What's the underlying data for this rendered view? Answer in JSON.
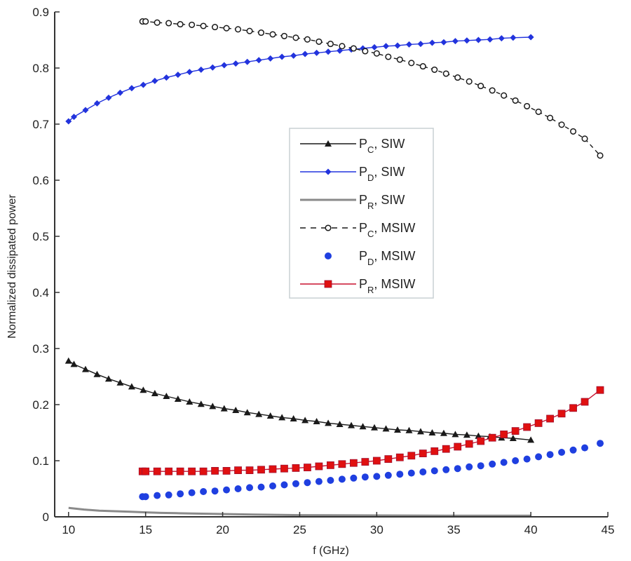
{
  "chart_data": {
    "type": "line",
    "title": "",
    "xlabel": "f (GHz)",
    "ylabel": "Normalized dissipated power",
    "xlim": [
      9.1,
      45
    ],
    "ylim": [
      0,
      0.9
    ],
    "grid": false,
    "legend_position": "center",
    "xticks": [
      10,
      15,
      20,
      25,
      30,
      35,
      40,
      45
    ],
    "xtick_labels": [
      "10",
      "15",
      "20",
      "25",
      "30",
      "35",
      "40",
      "45"
    ],
    "yticks": [
      0,
      0.1,
      0.2,
      0.3,
      0.4,
      0.5,
      0.6,
      0.7,
      0.8,
      0.9
    ],
    "ytick_labels": [
      "0",
      "0.1",
      "0.2",
      "0.3",
      "0.4",
      "0.5",
      "0.6",
      "0.7",
      "0.8",
      "0.9"
    ],
    "series": [
      {
        "name": "PC, SIW",
        "legend_main": "P",
        "legend_sub": "C",
        "legend_rest": ", SIW",
        "color": "#1a1a1a",
        "line": "solid",
        "marker": "triangle",
        "x": [
          10,
          10.35,
          11.1,
          11.85,
          12.6,
          13.35,
          14.1,
          14.85,
          15.6,
          16.35,
          17.1,
          17.85,
          18.6,
          19.35,
          20.1,
          20.85,
          21.6,
          22.35,
          23.1,
          23.85,
          24.6,
          25.35,
          26.1,
          26.85,
          27.6,
          28.35,
          29.1,
          29.85,
          30.6,
          31.35,
          32.1,
          32.85,
          33.6,
          34.35,
          35.1,
          35.85,
          36.6,
          37.35,
          38.1,
          38.85,
          40
        ],
        "y": [
          0.278,
          0.272,
          0.263,
          0.254,
          0.246,
          0.239,
          0.232,
          0.226,
          0.22,
          0.215,
          0.21,
          0.205,
          0.201,
          0.197,
          0.193,
          0.19,
          0.186,
          0.183,
          0.18,
          0.177,
          0.175,
          0.172,
          0.17,
          0.167,
          0.165,
          0.163,
          0.161,
          0.159,
          0.157,
          0.155,
          0.154,
          0.152,
          0.15,
          0.149,
          0.147,
          0.146,
          0.144,
          0.143,
          0.141,
          0.14,
          0.137
        ]
      },
      {
        "name": "PD, SIW",
        "legend_main": "P",
        "legend_sub": "D",
        "legend_rest": ", SIW",
        "color": "#2233dd",
        "line": "solid",
        "marker": "diamond",
        "x": [
          10,
          10.35,
          11.1,
          11.85,
          12.6,
          13.35,
          14.1,
          14.85,
          15.6,
          16.35,
          17.1,
          17.85,
          18.6,
          19.35,
          20.1,
          20.85,
          21.6,
          22.35,
          23.1,
          23.85,
          24.6,
          25.35,
          26.1,
          26.85,
          27.6,
          28.35,
          29.1,
          29.85,
          30.6,
          31.35,
          32.1,
          32.85,
          33.6,
          34.35,
          35.1,
          35.85,
          36.6,
          37.35,
          38.1,
          38.85,
          40
        ],
        "y": [
          0.705,
          0.713,
          0.725,
          0.737,
          0.747,
          0.756,
          0.764,
          0.77,
          0.777,
          0.783,
          0.788,
          0.793,
          0.797,
          0.801,
          0.805,
          0.808,
          0.811,
          0.814,
          0.817,
          0.82,
          0.822,
          0.825,
          0.827,
          0.829,
          0.831,
          0.833,
          0.835,
          0.837,
          0.839,
          0.84,
          0.842,
          0.843,
          0.845,
          0.846,
          0.848,
          0.849,
          0.85,
          0.851,
          0.853,
          0.854,
          0.855
        ]
      },
      {
        "name": "PR, SIW",
        "legend_main": "P",
        "legend_sub": "R",
        "legend_rest": ", SIW",
        "color": "#8a8a8a",
        "line": "solid",
        "marker": "none",
        "x": [
          10,
          11,
          12,
          13,
          14,
          15,
          16,
          17,
          18,
          20,
          22,
          25,
          30,
          35,
          40
        ],
        "y": [
          0.016,
          0.013,
          0.011,
          0.01,
          0.009,
          0.008,
          0.007,
          0.0065,
          0.006,
          0.005,
          0.004,
          0.003,
          0.0025,
          0.002,
          0.002
        ]
      },
      {
        "name": "PC, MSIW",
        "legend_main": "P",
        "legend_sub": "C",
        "legend_rest": ", MSIW",
        "color": "#1a1a1a",
        "line": "dashed",
        "marker": "circle-open",
        "x": [
          14.8,
          15.0,
          15.75,
          16.5,
          17.25,
          18.0,
          18.75,
          19.5,
          20.25,
          21.0,
          21.75,
          22.5,
          23.25,
          24.0,
          24.75,
          25.5,
          26.25,
          27.0,
          27.75,
          28.5,
          29.25,
          30.0,
          30.75,
          31.5,
          32.25,
          33.0,
          33.75,
          34.5,
          35.25,
          36.0,
          36.75,
          37.5,
          38.25,
          39.0,
          39.75,
          40.5,
          41.25,
          42.0,
          42.75,
          43.5,
          44.5
        ],
        "y": [
          0.883,
          0.883,
          0.881,
          0.88,
          0.878,
          0.877,
          0.875,
          0.873,
          0.871,
          0.869,
          0.866,
          0.863,
          0.86,
          0.857,
          0.854,
          0.851,
          0.847,
          0.843,
          0.839,
          0.835,
          0.83,
          0.826,
          0.82,
          0.815,
          0.809,
          0.803,
          0.797,
          0.79,
          0.783,
          0.776,
          0.768,
          0.76,
          0.751,
          0.742,
          0.732,
          0.722,
          0.711,
          0.699,
          0.687,
          0.674,
          0.644
        ]
      },
      {
        "name": "PD, MSIW",
        "legend_main": "P",
        "legend_sub": "D",
        "legend_rest": ", MSIW",
        "color": "#1f3fe0",
        "line": "none",
        "marker": "dot",
        "x": [
          14.8,
          15.0,
          15.75,
          16.5,
          17.25,
          18.0,
          18.75,
          19.5,
          20.25,
          21.0,
          21.75,
          22.5,
          23.25,
          24.0,
          24.75,
          25.5,
          26.25,
          27.0,
          27.75,
          28.5,
          29.25,
          30.0,
          30.75,
          31.5,
          32.25,
          33.0,
          33.75,
          34.5,
          35.25,
          36.0,
          36.75,
          37.5,
          38.25,
          39.0,
          39.75,
          40.5,
          41.25,
          42.0,
          42.75,
          43.5,
          44.5
        ],
        "y": [
          0.036,
          0.036,
          0.038,
          0.039,
          0.041,
          0.043,
          0.045,
          0.046,
          0.048,
          0.05,
          0.052,
          0.053,
          0.055,
          0.057,
          0.059,
          0.061,
          0.063,
          0.065,
          0.067,
          0.069,
          0.071,
          0.072,
          0.074,
          0.076,
          0.078,
          0.08,
          0.082,
          0.084,
          0.086,
          0.089,
          0.091,
          0.094,
          0.097,
          0.1,
          0.103,
          0.107,
          0.111,
          0.115,
          0.119,
          0.123,
          0.131
        ]
      },
      {
        "name": "PR, MSIW",
        "legend_main": "P",
        "legend_sub": "R",
        "legend_rest": ", MSIW",
        "color": "#c8102e",
        "line": "solid",
        "marker": "square",
        "x": [
          14.8,
          15.0,
          15.75,
          16.5,
          17.25,
          18.0,
          18.75,
          19.5,
          20.25,
          21.0,
          21.75,
          22.5,
          23.25,
          24.0,
          24.75,
          25.5,
          26.25,
          27.0,
          27.75,
          28.5,
          29.25,
          30.0,
          30.75,
          31.5,
          32.25,
          33.0,
          33.75,
          34.5,
          35.25,
          36.0,
          36.75,
          37.5,
          38.25,
          39.0,
          39.75,
          40.5,
          41.25,
          42.0,
          42.75,
          43.5,
          44.5
        ],
        "y": [
          0.081,
          0.081,
          0.081,
          0.081,
          0.081,
          0.081,
          0.081,
          0.082,
          0.082,
          0.083,
          0.083,
          0.084,
          0.085,
          0.086,
          0.087,
          0.088,
          0.09,
          0.092,
          0.094,
          0.096,
          0.098,
          0.1,
          0.103,
          0.106,
          0.109,
          0.113,
          0.117,
          0.121,
          0.125,
          0.13,
          0.135,
          0.141,
          0.147,
          0.153,
          0.16,
          0.167,
          0.175,
          0.184,
          0.194,
          0.205,
          0.226
        ]
      }
    ]
  }
}
